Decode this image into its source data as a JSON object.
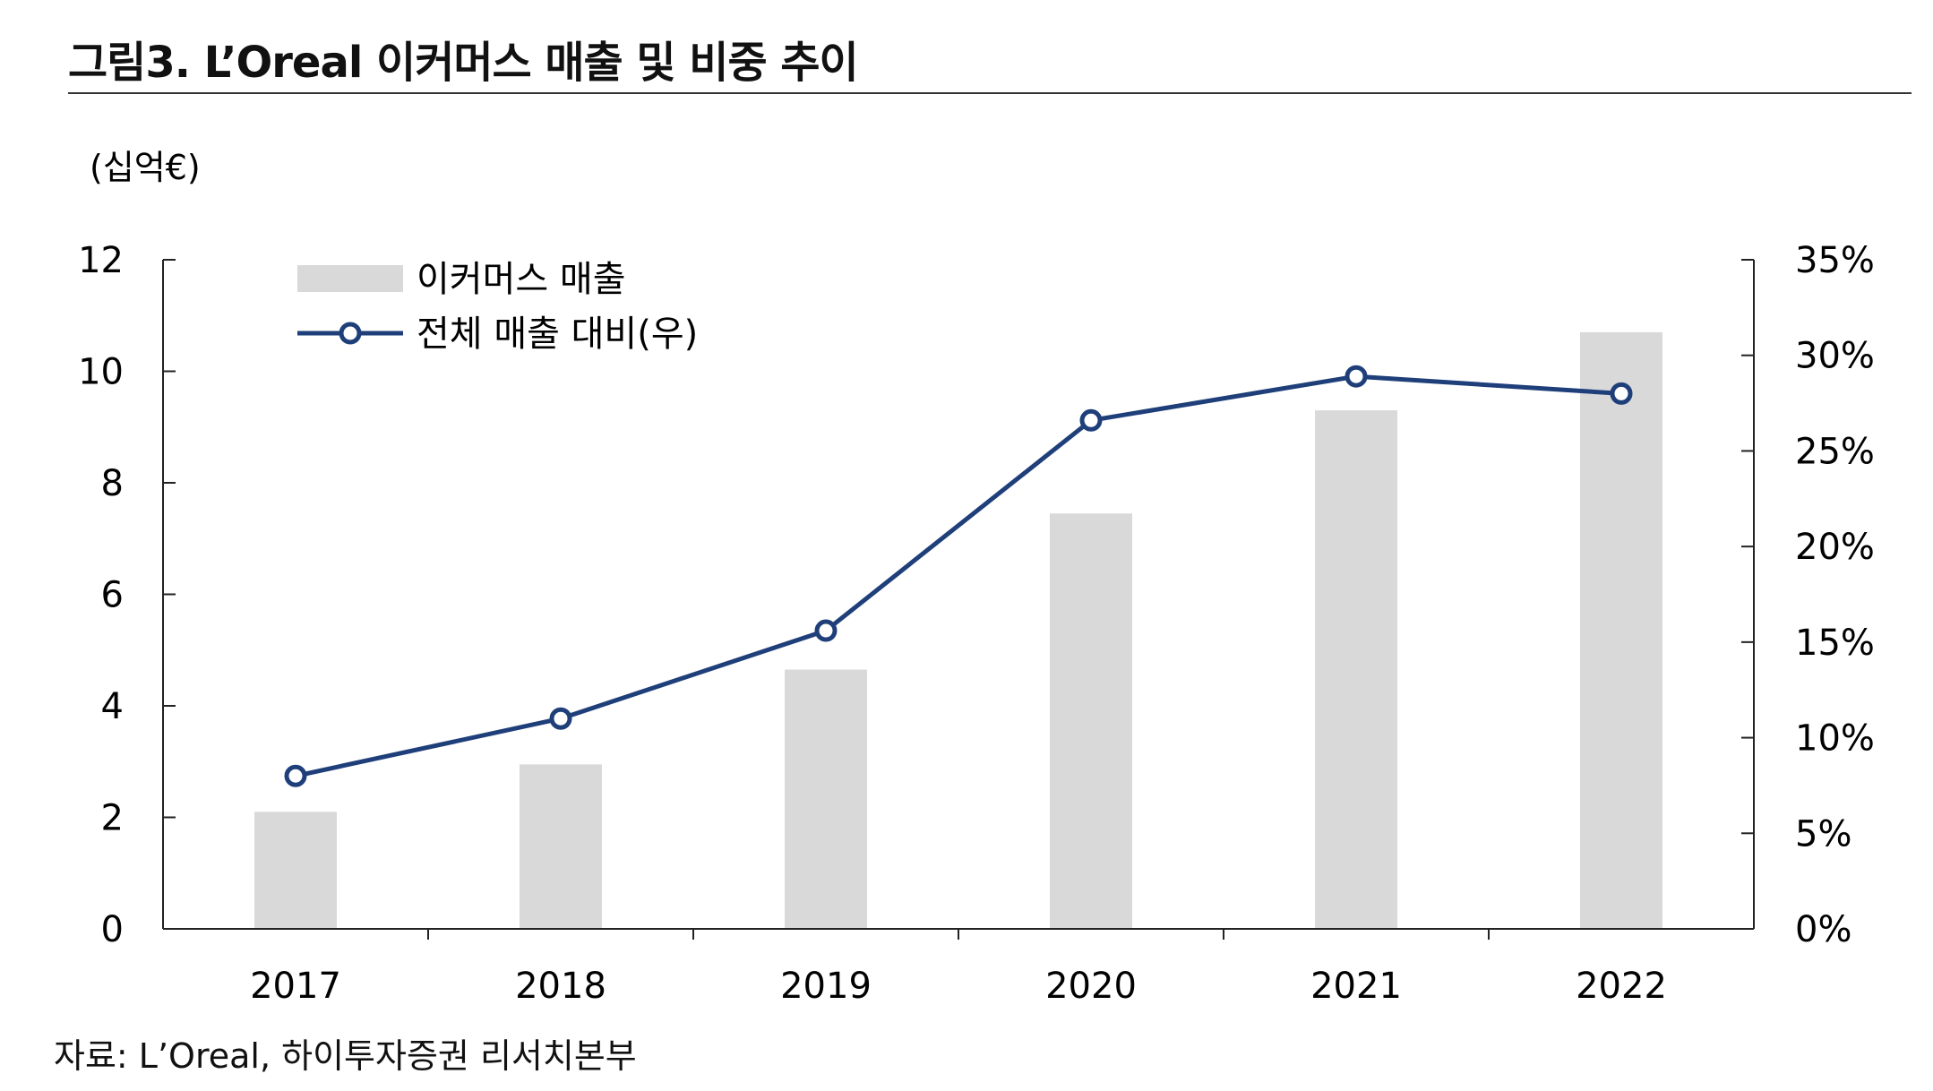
{
  "title": "그림3. L’Oreal 이커머스 매출 및 비중 추이",
  "source": "자료: L’Oreal, 하이투자증권 리서치본부",
  "chart_data": {
    "type": "bar",
    "title": "그림3. L’Oreal 이커머스 매출 및 비중 추이",
    "categories": [
      "2017",
      "2018",
      "2019",
      "2020",
      "2021",
      "2022"
    ],
    "ylabel": "(십억€)",
    "ylim": [
      0,
      12
    ],
    "y_ticks": [
      "0",
      "2",
      "4",
      "6",
      "8",
      "10",
      "12"
    ],
    "y2lim": [
      0,
      35
    ],
    "y2_ticks": [
      "0%",
      "5%",
      "10%",
      "15%",
      "20%",
      "25%",
      "30%",
      "35%"
    ],
    "grid": false,
    "legend_position": "top-left",
    "series": [
      {
        "name": "이커머스 매출",
        "type": "bar",
        "axis": "left",
        "color": "#d9d9d9",
        "values": [
          2.1,
          2.95,
          4.65,
          7.45,
          9.3,
          10.7
        ]
      },
      {
        "name": "전체 매출 대비(우)",
        "type": "line",
        "axis": "right",
        "color": "#1f3f7a",
        "values": [
          8.0,
          11.0,
          15.6,
          26.6,
          28.9,
          28.0
        ]
      }
    ]
  }
}
